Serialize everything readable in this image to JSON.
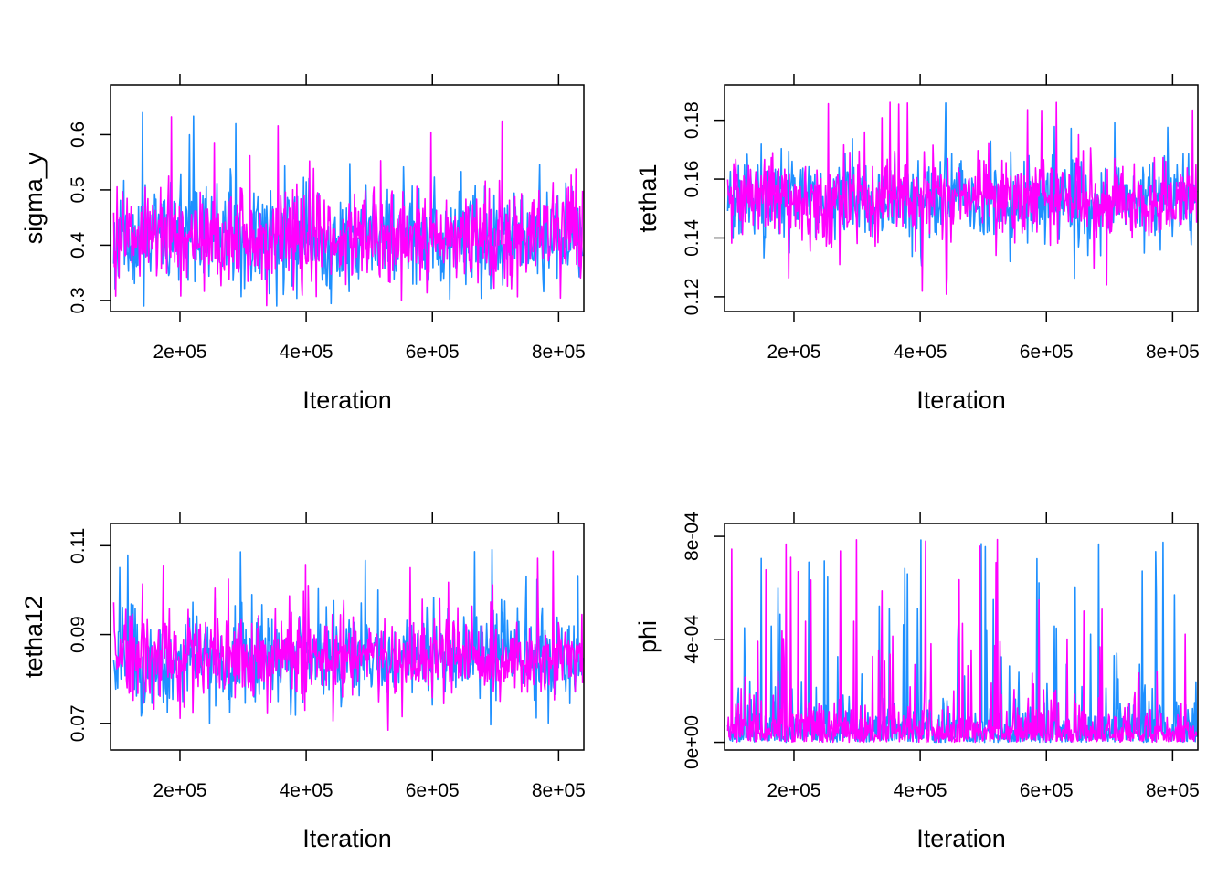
{
  "chart_data": [
    {
      "type": "line",
      "xlabel": "Iteration",
      "ylabel": "sigma_y",
      "xlim": [
        90000,
        840000
      ],
      "ylim": [
        0.28,
        0.69
      ],
      "x_ticks": [
        200000,
        400000,
        600000,
        800000
      ],
      "x_tick_labels": [
        "2e+05",
        "4e+05",
        "6e+05",
        "8e+05"
      ],
      "y_ticks": [
        0.3,
        0.4,
        0.5,
        0.6
      ],
      "y_tick_labels": [
        "0.3",
        "0.4",
        "0.5",
        "0.6"
      ],
      "grid": false,
      "trace": {
        "x_start": 95000,
        "x_end": 838000,
        "center": 0.415,
        "spread": 0.05,
        "min": 0.29,
        "max": 0.66,
        "spikiness": 0.35
      },
      "series": [
        {
          "color": "#1E90FF",
          "seed": 11,
          "values": []
        },
        {
          "color": "#FF00FF",
          "seed": 29,
          "values": []
        }
      ]
    },
    {
      "type": "line",
      "xlabel": "Iteration",
      "ylabel": "tetha1",
      "xlim": [
        90000,
        840000
      ],
      "ylim": [
        0.115,
        0.192
      ],
      "x_ticks": [
        200000,
        400000,
        600000,
        800000
      ],
      "x_tick_labels": [
        "2e+05",
        "4e+05",
        "6e+05",
        "8e+05"
      ],
      "y_ticks": [
        0.12,
        0.14,
        0.16,
        0.18
      ],
      "y_tick_labels": [
        "0.12",
        "0.14",
        "0.16",
        "0.18"
      ],
      "grid": false,
      "trace": {
        "x_start": 95000,
        "x_end": 838000,
        "center": 0.153,
        "spread": 0.008,
        "min": 0.12,
        "max": 0.187,
        "spikiness": 0.35
      },
      "series": [
        {
          "color": "#1E90FF",
          "seed": 41,
          "values": []
        },
        {
          "color": "#FF00FF",
          "seed": 53,
          "values": []
        }
      ]
    },
    {
      "type": "line",
      "xlabel": "Iteration",
      "ylabel": "tetha12",
      "xlim": [
        90000,
        840000
      ],
      "ylim": [
        0.064,
        0.115
      ],
      "x_ticks": [
        200000,
        400000,
        600000,
        800000
      ],
      "x_tick_labels": [
        "2e+05",
        "4e+05",
        "6e+05",
        "8e+05"
      ],
      "y_ticks": [
        0.07,
        0.09,
        0.11
      ],
      "y_tick_labels": [
        "0.07",
        "0.09",
        "0.11"
      ],
      "grid": false,
      "trace": {
        "x_start": 95000,
        "x_end": 838000,
        "center": 0.085,
        "spread": 0.0055,
        "min": 0.068,
        "max": 0.112,
        "spikiness": 0.35
      },
      "series": [
        {
          "color": "#1E90FF",
          "seed": 67,
          "values": []
        },
        {
          "color": "#FF00FF",
          "seed": 79,
          "values": []
        }
      ]
    },
    {
      "type": "line",
      "xlabel": "Iteration",
      "ylabel": "phi",
      "xlim": [
        90000,
        840000
      ],
      "ylim": [
        -3e-05,
        0.00085
      ],
      "x_ticks": [
        200000,
        400000,
        600000,
        800000
      ],
      "x_tick_labels": [
        "2e+05",
        "4e+05",
        "6e+05",
        "8e+05"
      ],
      "y_ticks": [
        0,
        0.0004,
        0.0008
      ],
      "y_tick_labels": [
        "0e+00",
        "4e-04",
        "8e-04"
      ],
      "grid": false,
      "trace": {
        "x_start": 95000,
        "x_end": 838000,
        "center": 5e-05,
        "spread": 6e-05,
        "min": 0.0,
        "max": 0.00079,
        "spikiness": 0.55,
        "skewed": true
      },
      "series": [
        {
          "color": "#1E90FF",
          "seed": 83,
          "values": []
        },
        {
          "color": "#FF00FF",
          "seed": 97,
          "values": []
        }
      ]
    }
  ]
}
